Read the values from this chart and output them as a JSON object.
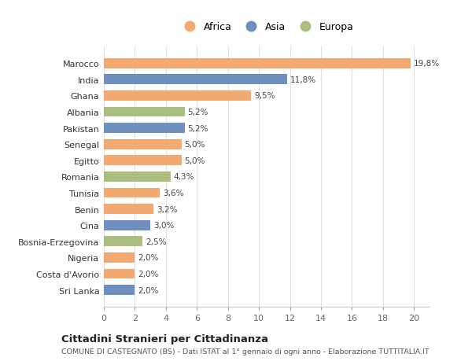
{
  "categories": [
    "Sri Lanka",
    "Costa d'Avorio",
    "Nigeria",
    "Bosnia-Erzegovina",
    "Cina",
    "Benin",
    "Tunisia",
    "Romania",
    "Egitto",
    "Senegal",
    "Pakistan",
    "Albania",
    "Ghana",
    "India",
    "Marocco"
  ],
  "values": [
    2.0,
    2.0,
    2.0,
    2.5,
    3.0,
    3.2,
    3.6,
    4.3,
    5.0,
    5.0,
    5.2,
    5.2,
    9.5,
    11.8,
    19.8
  ],
  "continents": [
    "Asia",
    "Africa",
    "Africa",
    "Europa",
    "Asia",
    "Africa",
    "Africa",
    "Europa",
    "Africa",
    "Africa",
    "Asia",
    "Europa",
    "Africa",
    "Asia",
    "Africa"
  ],
  "labels": [
    "2,0%",
    "2,0%",
    "2,0%",
    "2,5%",
    "3,0%",
    "3,2%",
    "3,6%",
    "4,3%",
    "5,0%",
    "5,0%",
    "5,2%",
    "5,2%",
    "9,5%",
    "11,8%",
    "19,8%"
  ],
  "colors": {
    "Africa": "#F2AA72",
    "Asia": "#6E8FBE",
    "Europa": "#ABBE80"
  },
  "background_color": "#ffffff",
  "grid_color": "#e0e0e0",
  "title": "Cittadini Stranieri per Cittadinanza",
  "subtitle": "COMUNE DI CASTEGNATO (BS) - Dati ISTAT al 1° gennaio di ogni anno - Elaborazione TUTTITALIA.IT",
  "xlim": [
    0,
    21
  ],
  "xticks": [
    0,
    2,
    4,
    6,
    8,
    10,
    12,
    14,
    16,
    18,
    20
  ],
  "bar_height": 0.62
}
